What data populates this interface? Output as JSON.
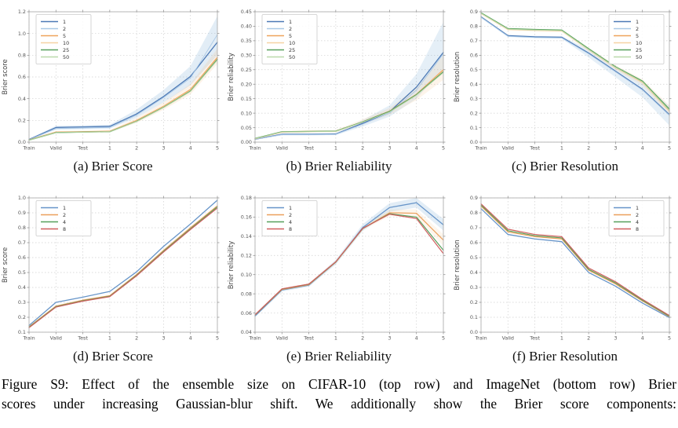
{
  "figure": {
    "caption_line1": "Figure S9: Effect of the ensemble size on CIFAR-10 (top row) and ImageNet (bottom row) Brier",
    "caption_line2": "scores under increasing Gaussian-blur shift. We additionally show the Brier score components:"
  },
  "chart_data": [
    {
      "id": "a",
      "type": "line",
      "title": "(a) Brier Score",
      "ylabel": "Brier score",
      "categories": [
        "Train",
        "Valid",
        "Test",
        "1",
        "2",
        "3",
        "4",
        "5"
      ],
      "ylim": [
        0.0,
        1.2
      ],
      "grid": true,
      "legend": "ul",
      "yticks": [
        0.0,
        0.2,
        0.4,
        0.6,
        0.8,
        1.0,
        1.2
      ],
      "ytick_labels": [
        "0.0",
        "0.2",
        "0.4",
        "0.6",
        "0.8",
        "1.0",
        "1.2"
      ],
      "series": [
        {
          "name": "1",
          "color": "#4c79b5",
          "width": 1.3,
          "values": [
            0.025,
            0.135,
            0.14,
            0.145,
            0.26,
            0.42,
            0.605,
            0.92
          ]
        },
        {
          "name": "2",
          "color": "#a9c8e6",
          "width": 0.9,
          "values": [
            0.022,
            0.125,
            0.13,
            0.135,
            0.25,
            0.41,
            0.59,
            0.99
          ]
        },
        {
          "name": "5",
          "color": "#efa35b",
          "width": 1.3,
          "values": [
            0.02,
            0.092,
            0.096,
            0.1,
            0.2,
            0.33,
            0.485,
            0.78
          ]
        },
        {
          "name": "10",
          "color": "#f6d3a4",
          "width": 0.9,
          "values": [
            0.019,
            0.09,
            0.094,
            0.098,
            0.196,
            0.326,
            0.478,
            0.77
          ]
        },
        {
          "name": "25",
          "color": "#57a05c",
          "width": 1.3,
          "values": [
            0.018,
            0.088,
            0.092,
            0.096,
            0.192,
            0.32,
            0.47,
            0.762
          ]
        },
        {
          "name": "50",
          "color": "#b9d9ab",
          "width": 0.9,
          "values": [
            0.017,
            0.087,
            0.091,
            0.095,
            0.19,
            0.318,
            0.466,
            0.755
          ]
        }
      ],
      "bands": [
        {
          "color": "#7badd6",
          "opacity": 0.22,
          "upper": [
            0.03,
            0.15,
            0.155,
            0.16,
            0.3,
            0.48,
            0.7,
            1.16
          ],
          "lower": [
            0.015,
            0.115,
            0.12,
            0.125,
            0.225,
            0.365,
            0.525,
            0.8
          ]
        },
        {
          "color": "#f3c48c",
          "opacity": 0.2,
          "upper": [
            0.026,
            0.102,
            0.106,
            0.112,
            0.222,
            0.365,
            0.535,
            0.86
          ],
          "lower": [
            0.014,
            0.082,
            0.086,
            0.09,
            0.178,
            0.298,
            0.44,
            0.72
          ]
        }
      ]
    },
    {
      "id": "b",
      "type": "line",
      "title": "(b) Brier Reliability",
      "ylabel": "Brier reliability",
      "categories": [
        "Train",
        "Valid",
        "Test",
        "1",
        "2",
        "3",
        "4",
        "5"
      ],
      "ylim": [
        0.0,
        0.45
      ],
      "grid": true,
      "legend": "ul",
      "yticks": [
        0.0,
        0.05,
        0.1,
        0.15,
        0.2,
        0.25,
        0.3,
        0.35,
        0.4,
        0.45
      ],
      "ytick_labels": [
        "0.00",
        "0.05",
        "0.10",
        "0.15",
        "0.20",
        "0.25",
        "0.30",
        "0.35",
        "0.40",
        "0.45"
      ],
      "series": [
        {
          "name": "1",
          "color": "#4c79b5",
          "width": 1.3,
          "values": [
            0.01,
            0.027,
            0.027,
            0.028,
            0.065,
            0.105,
            0.19,
            0.31
          ]
        },
        {
          "name": "2",
          "color": "#a9c8e6",
          "width": 0.9,
          "values": [
            0.01,
            0.026,
            0.026,
            0.027,
            0.062,
            0.1,
            0.18,
            0.305
          ]
        },
        {
          "name": "5",
          "color": "#efa35b",
          "width": 1.3,
          "values": [
            0.012,
            0.035,
            0.037,
            0.038,
            0.07,
            0.107,
            0.165,
            0.25
          ]
        },
        {
          "name": "10",
          "color": "#f6d3a4",
          "width": 0.9,
          "values": [
            0.012,
            0.035,
            0.036,
            0.037,
            0.069,
            0.105,
            0.163,
            0.247
          ]
        },
        {
          "name": "25",
          "color": "#57a05c",
          "width": 1.3,
          "values": [
            0.013,
            0.036,
            0.037,
            0.038,
            0.07,
            0.106,
            0.164,
            0.243
          ]
        },
        {
          "name": "50",
          "color": "#b9d9ab",
          "width": 0.9,
          "values": [
            0.012,
            0.035,
            0.036,
            0.037,
            0.069,
            0.104,
            0.162,
            0.24
          ]
        }
      ],
      "bands": [
        {
          "color": "#7badd6",
          "opacity": 0.2,
          "upper": [
            0.012,
            0.03,
            0.03,
            0.032,
            0.076,
            0.127,
            0.235,
            0.415
          ],
          "lower": [
            0.008,
            0.023,
            0.023,
            0.024,
            0.054,
            0.088,
            0.15,
            0.255
          ]
        },
        {
          "color": "#f3c48c",
          "opacity": 0.18,
          "upper": [
            0.014,
            0.039,
            0.041,
            0.042,
            0.079,
            0.118,
            0.188,
            0.3
          ],
          "lower": [
            0.01,
            0.031,
            0.033,
            0.034,
            0.062,
            0.094,
            0.145,
            0.215
          ]
        }
      ]
    },
    {
      "id": "c",
      "type": "line",
      "title": "(c) Brier Resolution",
      "ylabel": "Brier resolution",
      "categories": [
        "Train",
        "Valid",
        "Test",
        "1",
        "2",
        "3",
        "4",
        "5"
      ],
      "ylim": [
        0.0,
        0.9
      ],
      "grid": true,
      "legend": "ur",
      "yticks": [
        0.0,
        0.1,
        0.2,
        0.3,
        0.4,
        0.5,
        0.6,
        0.7,
        0.8,
        0.9
      ],
      "ytick_labels": [
        "0.0",
        "0.1",
        "0.2",
        "0.3",
        "0.4",
        "0.5",
        "0.6",
        "0.7",
        "0.8",
        "0.9"
      ],
      "series": [
        {
          "name": "1",
          "color": "#4c79b5",
          "width": 1.3,
          "values": [
            0.865,
            0.735,
            0.727,
            0.724,
            0.615,
            0.49,
            0.365,
            0.19
          ]
        },
        {
          "name": "2",
          "color": "#a9c8e6",
          "width": 0.9,
          "values": [
            0.862,
            0.731,
            0.723,
            0.72,
            0.61,
            0.485,
            0.36,
            0.185
          ]
        },
        {
          "name": "5",
          "color": "#efa35b",
          "width": 1.3,
          "values": [
            0.89,
            0.78,
            0.774,
            0.77,
            0.64,
            0.515,
            0.415,
            0.215
          ]
        },
        {
          "name": "10",
          "color": "#f6d3a4",
          "width": 0.9,
          "values": [
            0.888,
            0.777,
            0.771,
            0.767,
            0.637,
            0.512,
            0.41,
            0.212
          ]
        },
        {
          "name": "25",
          "color": "#57a05c",
          "width": 1.3,
          "values": [
            0.893,
            0.784,
            0.778,
            0.774,
            0.645,
            0.52,
            0.422,
            0.228
          ]
        },
        {
          "name": "50",
          "color": "#b9d9ab",
          "width": 0.9,
          "values": [
            0.89,
            0.78,
            0.774,
            0.77,
            0.64,
            0.516,
            0.416,
            0.22
          ]
        }
      ],
      "bands": [
        {
          "color": "#7badd6",
          "opacity": 0.2,
          "upper": [
            0.87,
            0.742,
            0.734,
            0.732,
            0.64,
            0.525,
            0.41,
            0.25
          ],
          "lower": [
            0.856,
            0.726,
            0.718,
            0.714,
            0.585,
            0.448,
            0.31,
            0.115
          ]
        },
        {
          "color": "#f3c48c",
          "opacity": 0.16,
          "upper": [
            0.896,
            0.788,
            0.782,
            0.778,
            0.652,
            0.532,
            0.435,
            0.255
          ],
          "lower": [
            0.882,
            0.77,
            0.764,
            0.76,
            0.625,
            0.498,
            0.392,
            0.185
          ]
        }
      ]
    },
    {
      "id": "d",
      "type": "line",
      "title": "(d) Brier Score",
      "ylabel": "Brier score",
      "categories": [
        "Train",
        "Valid",
        "Test",
        "1",
        "2",
        "3",
        "4",
        "5"
      ],
      "ylim": [
        0.1,
        1.0
      ],
      "grid": true,
      "legend": "ul",
      "yticks": [
        0.1,
        0.2,
        0.3,
        0.4,
        0.5,
        0.6,
        0.7,
        0.8,
        0.9,
        1.0
      ],
      "ytick_labels": [
        "0.1",
        "0.2",
        "0.3",
        "0.4",
        "0.5",
        "0.6",
        "0.7",
        "0.8",
        "0.9",
        "1.0"
      ],
      "series": [
        {
          "name": "1",
          "color": "#6795c9",
          "width": 1.3,
          "values": [
            0.145,
            0.3,
            0.335,
            0.373,
            0.505,
            0.675,
            0.825,
            0.985
          ]
        },
        {
          "name": "2",
          "color": "#eb9f5b",
          "width": 1.2,
          "values": [
            0.136,
            0.275,
            0.315,
            0.345,
            0.487,
            0.648,
            0.8,
            0.947
          ]
        },
        {
          "name": "4",
          "color": "#57a05c",
          "width": 1.2,
          "values": [
            0.133,
            0.271,
            0.311,
            0.341,
            0.482,
            0.642,
            0.793,
            0.94
          ]
        },
        {
          "name": "8",
          "color": "#d05f5f",
          "width": 1.2,
          "values": [
            0.13,
            0.268,
            0.308,
            0.338,
            0.478,
            0.637,
            0.788,
            0.932
          ]
        }
      ],
      "bands": []
    },
    {
      "id": "e",
      "type": "line",
      "title": "(e) Brier Reliability",
      "ylabel": "Brier reliability",
      "categories": [
        "Train",
        "Valid",
        "Test",
        "1",
        "2",
        "3",
        "4",
        "5"
      ],
      "ylim": [
        0.04,
        0.18
      ],
      "grid": true,
      "legend": "ul",
      "yticks": [
        0.04,
        0.06,
        0.08,
        0.1,
        0.12,
        0.14,
        0.16,
        0.18
      ],
      "ytick_labels": [
        "0.04",
        "0.06",
        "0.08",
        "0.10",
        "0.12",
        "0.14",
        "0.16",
        "0.18"
      ],
      "series": [
        {
          "name": "1",
          "color": "#6795c9",
          "width": 1.3,
          "values": [
            0.057,
            0.084,
            0.089,
            0.113,
            0.149,
            0.17,
            0.175,
            0.152
          ]
        },
        {
          "name": "2",
          "color": "#eb9f5b",
          "width": 1.2,
          "values": [
            0.058,
            0.0845,
            0.0895,
            0.113,
            0.148,
            0.1645,
            0.164,
            0.136
          ]
        },
        {
          "name": "4",
          "color": "#57a05c",
          "width": 1.2,
          "values": [
            0.058,
            0.085,
            0.09,
            0.1132,
            0.148,
            0.1635,
            0.16,
            0.1255
          ]
        },
        {
          "name": "8",
          "color": "#d05f5f",
          "width": 1.2,
          "values": [
            0.0582,
            0.0852,
            0.0902,
            0.1134,
            0.1482,
            0.163,
            0.1585,
            0.122
          ]
        }
      ],
      "bands": [
        {
          "color": "#7badd6",
          "opacity": 0.22,
          "upper": [
            0.0585,
            0.0855,
            0.0905,
            0.1155,
            0.1525,
            0.1745,
            0.18,
            0.158
          ],
          "lower": [
            0.0555,
            0.0825,
            0.0875,
            0.1105,
            0.1455,
            0.1655,
            0.17,
            0.146
          ]
        },
        {
          "color": "#f3c48c",
          "opacity": 0.16,
          "upper": [
            0.059,
            0.086,
            0.091,
            0.1145,
            0.15,
            0.168,
            0.168,
            0.142
          ],
          "lower": [
            0.057,
            0.084,
            0.089,
            0.1115,
            0.146,
            0.161,
            0.16,
            0.13
          ]
        }
      ]
    },
    {
      "id": "f",
      "type": "line",
      "title": "(f) Brier Resolution",
      "ylabel": "Brier resolution",
      "categories": [
        "Train",
        "Valid",
        "Test",
        "1",
        "2",
        "3",
        "4",
        "5"
      ],
      "ylim": [
        0.0,
        0.9
      ],
      "grid": true,
      "legend": "ur",
      "yticks": [
        0.0,
        0.1,
        0.2,
        0.3,
        0.4,
        0.5,
        0.6,
        0.7,
        0.8,
        0.9
      ],
      "ytick_labels": [
        "0.0",
        "0.1",
        "0.2",
        "0.3",
        "0.4",
        "0.5",
        "0.6",
        "0.7",
        "0.8",
        "0.9"
      ],
      "series": [
        {
          "name": "1",
          "color": "#6795c9",
          "width": 1.3,
          "values": [
            0.828,
            0.655,
            0.625,
            0.607,
            0.4,
            0.308,
            0.195,
            0.098
          ]
        },
        {
          "name": "2",
          "color": "#eb9f5b",
          "width": 1.2,
          "values": [
            0.845,
            0.672,
            0.64,
            0.625,
            0.415,
            0.323,
            0.209,
            0.104
          ]
        },
        {
          "name": "4",
          "color": "#57a05c",
          "width": 1.2,
          "values": [
            0.852,
            0.68,
            0.647,
            0.632,
            0.421,
            0.33,
            0.214,
            0.107
          ]
        },
        {
          "name": "8",
          "color": "#d05f5f",
          "width": 1.2,
          "values": [
            0.86,
            0.69,
            0.655,
            0.64,
            0.43,
            0.338,
            0.22,
            0.112
          ]
        }
      ],
      "bands": []
    }
  ]
}
